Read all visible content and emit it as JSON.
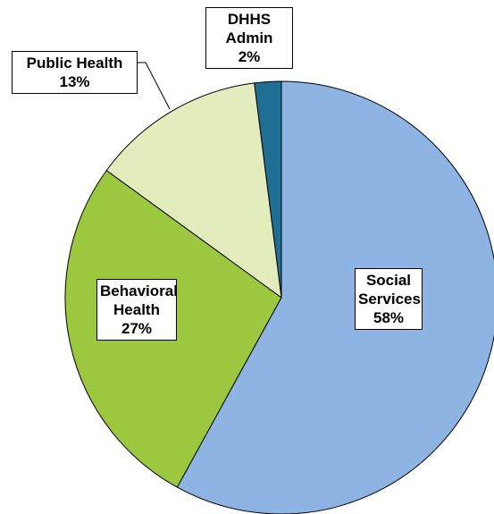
{
  "chart_data": {
    "type": "pie",
    "categories": [
      "Social Services",
      "Behavioral Health",
      "Public Health",
      "DHHS Admin"
    ],
    "values": [
      58,
      27,
      13,
      2
    ],
    "value_labels": [
      "58%",
      "27%",
      "13%",
      "2%"
    ],
    "colors": [
      "#8db4e2",
      "#9bc83e",
      "#e3ecbc",
      "#1f6e94"
    ]
  }
}
